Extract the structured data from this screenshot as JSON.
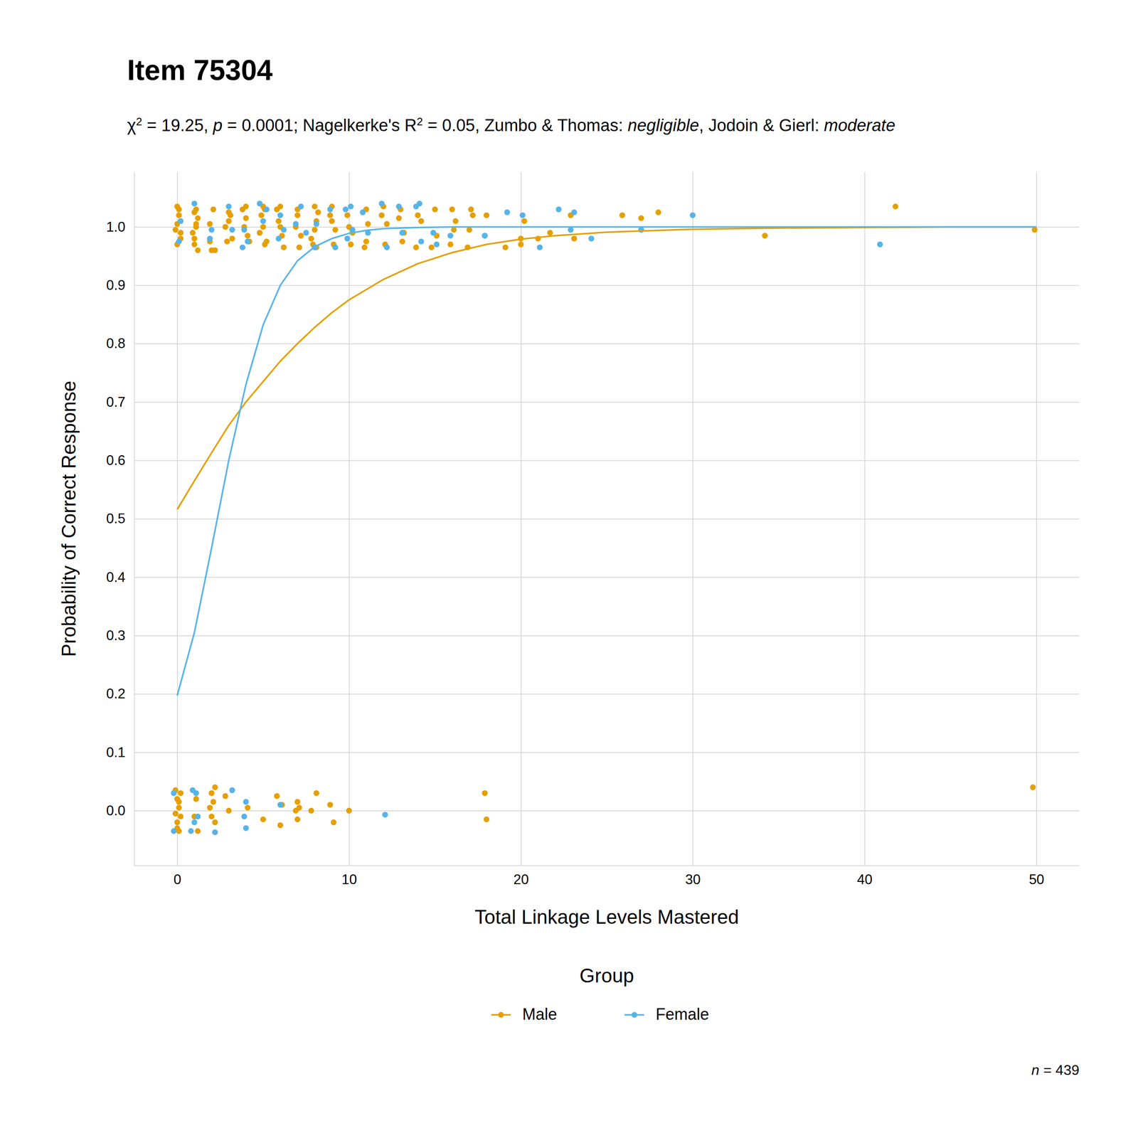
{
  "chart_data": {
    "type": "scatter",
    "title": "Item 75304",
    "subtitle": [
      {
        "text": "χ"
      },
      {
        "text": "2",
        "style": "sup"
      },
      {
        "text": " = 19.25, "
      },
      {
        "text": "p",
        "style": "italic"
      },
      {
        "text": " = 0.0001; Nagelkerke's R"
      },
      {
        "text": "2",
        "style": "sup"
      },
      {
        "text": " = 0.05, Zumbo & Thomas: "
      },
      {
        "text": "negligible",
        "style": "italic"
      },
      {
        "text": ", Jodoin & Gierl: "
      },
      {
        "text": "moderate",
        "style": "italic"
      }
    ],
    "caption": [
      {
        "text": "n",
        "style": "italic"
      },
      {
        "text": " = 439"
      }
    ],
    "x_label": "Total Linkage Levels Mastered",
    "y_label": "Probability of Correct Response",
    "legend_title": "Group",
    "legend": "bottom",
    "grid": true,
    "xlim": [
      -2.5,
      52.5
    ],
    "xticks": [
      0,
      10,
      20,
      30,
      40,
      50
    ],
    "ylim": [
      -0.094,
      1.094
    ],
    "yticks": [
      {
        "value": 0,
        "label": "0.0"
      },
      {
        "value": 0.1,
        "label": "0.1"
      },
      {
        "value": 0.2,
        "label": "0.2"
      },
      {
        "value": 0.3,
        "label": "0.3"
      },
      {
        "value": 0.4,
        "label": "0.4"
      },
      {
        "value": 0.5,
        "label": "0.5"
      },
      {
        "value": 0.6,
        "label": "0.6"
      },
      {
        "value": 0.7,
        "label": "0.7"
      },
      {
        "value": 0.8,
        "label": "0.8"
      },
      {
        "value": 0.9,
        "label": "0.9"
      },
      {
        "value": 1,
        "label": "1.0"
      }
    ],
    "series": [
      {
        "name": "Male",
        "color": "#E69F00",
        "marker": "circle",
        "line_style": "solid",
        "x": [
          0,
          1,
          2,
          3,
          4,
          5,
          6,
          7,
          8,
          9,
          10,
          12,
          14,
          16,
          18,
          20,
          22,
          25,
          30,
          35,
          40,
          45,
          50
        ],
        "values": [
          0.516,
          0.565,
          0.613,
          0.66,
          0.7,
          0.735,
          0.77,
          0.8,
          0.828,
          0.853,
          0.875,
          0.91,
          0.937,
          0.956,
          0.97,
          0.979,
          0.985,
          0.991,
          0.996,
          0.998,
          0.999,
          1.0,
          1.0
        ],
        "points_x": [
          0,
          0,
          0.1,
          0.2,
          -0.1,
          0.1,
          0.2,
          0,
          1,
          1.1,
          1,
          1.2,
          1.1,
          0.9,
          1.2,
          1,
          1.1,
          2,
          2.1,
          1.9,
          2.2,
          1.9,
          3,
          2.9,
          3.1,
          2.8,
          3.2,
          3,
          4,
          3.9,
          4.1,
          4,
          3.8,
          4.2,
          5,
          5.1,
          4.9,
          5,
          5.2,
          4.8,
          5.1,
          6,
          5.9,
          6.1,
          6.2,
          5.8,
          6,
          7,
          7.1,
          6.9,
          7.2,
          7,
          8,
          7.9,
          8.1,
          8,
          8.2,
          7.8,
          8.1,
          9,
          9.1,
          8.9,
          9.2,
          9,
          10,
          10.1,
          9.9,
          10.2,
          11,
          10.9,
          11.1,
          11,
          12,
          12.1,
          11.9,
          12.2,
          13,
          13.1,
          12.9,
          13.2,
          14,
          13.9,
          14.2,
          15,
          15.1,
          14.8,
          16,
          16.1,
          15.9,
          16.2,
          17,
          17.1,
          16.9,
          17.2,
          18,
          17.9,
          19.1,
          20,
          20,
          20.2,
          21,
          21.7,
          22.9,
          23.1,
          25.9,
          27,
          27,
          28,
          34.2,
          41.8,
          49.9,
          -0.1,
          0,
          0.1,
          0.2,
          0,
          0.1,
          0.2,
          -0.1,
          0.1,
          0,
          1,
          1.1,
          1.2,
          2,
          2.1,
          2.2,
          1.9,
          2,
          2.2,
          2.8,
          3,
          4.1,
          5,
          5.8,
          6,
          6.1,
          7,
          6.9,
          7,
          7.1,
          7.8,
          8.1,
          8.9,
          9.1,
          10,
          17.9,
          18,
          49.8
        ],
        "points_y": [
          1.035,
          0.97,
          1.02,
          0.99,
          0.995,
          1.03,
          0.98,
          1.005,
          1.025,
          1.0,
          0.97,
          0.96,
          1.03,
          0.99,
          1.015,
          0.98,
          1.005,
          0.96,
          1.03,
          0.975,
          0.96,
          1.005,
          1.025,
          0.975,
          1.02,
          1.0,
          0.98,
          1.01,
          1.035,
          1.0,
          0.985,
          1.015,
          1.03,
          0.975,
          1.035,
          0.97,
          1.02,
          1.0,
          0.975,
          0.99,
          1.03,
          1.035,
          1.01,
          0.985,
          0.965,
          1.03,
          1.0,
          1.02,
          0.965,
          1.0,
          0.985,
          1.03,
          1.035,
          0.97,
          1.01,
          0.995,
          1.025,
          0.98,
          0.965,
          1.035,
          0.97,
          1.02,
          0.995,
          1.01,
          1.0,
          0.97,
          1.02,
          0.99,
          1.03,
          0.965,
          1.005,
          0.975,
          1.035,
          0.97,
          1.02,
          1.005,
          1.03,
          0.975,
          1.015,
          0.99,
          1.02,
          0.965,
          1.01,
          1.03,
          0.985,
          0.965,
          1.03,
          0.995,
          0.97,
          1.01,
          0.995,
          1.03,
          0.965,
          1.02,
          1.02,
          0.985,
          0.965,
          0.98,
          0.97,
          1.01,
          0.98,
          0.99,
          1.02,
          0.98,
          1.02,
          1.015,
          0.995,
          1.025,
          0.985,
          1.035,
          0.995,
          0.035,
          0.02,
          0.005,
          -0.01,
          -0.02,
          -0.035,
          0.03,
          -0.005,
          0.015,
          -0.03,
          -0.01,
          0.02,
          -0.035,
          0.03,
          0.015,
          -0.02,
          0.005,
          -0.01,
          0.04,
          0.025,
          0.0,
          0.005,
          -0.015,
          0.025,
          -0.025,
          0.01,
          0.015,
          0.0,
          -0.015,
          0.005,
          0.0,
          0.03,
          0.01,
          -0.02,
          0.0,
          0.03,
          -0.015,
          0.04
        ]
      },
      {
        "name": "Female",
        "color": "#56B4E9",
        "marker": "circle",
        "line_style": "solid",
        "x": [
          0,
          1,
          2,
          3,
          4,
          5,
          6,
          7,
          8,
          9,
          10,
          11,
          12,
          14,
          16,
          20,
          30,
          40,
          50
        ],
        "values": [
          0.197,
          0.305,
          0.45,
          0.6,
          0.73,
          0.832,
          0.9,
          0.942,
          0.966,
          0.98,
          0.989,
          0.994,
          0.997,
          0.999,
          1.0,
          1.0,
          1.0,
          1.0,
          1.0
        ],
        "points_x": [
          0.2,
          0.1,
          1,
          1.9,
          2,
          3,
          3.2,
          3.8,
          3.9,
          4.1,
          4.8,
          5,
          5.2,
          5.9,
          6,
          6.2,
          6.9,
          7.2,
          7.5,
          8,
          8.1,
          8.9,
          9.2,
          9.8,
          10.1,
          9.9,
          10.2,
          10.8,
          11.1,
          11.9,
          12.2,
          12.9,
          13.1,
          13.9,
          14.1,
          14.2,
          14.9,
          15.1,
          15.9,
          17.9,
          19.2,
          20.1,
          21.1,
          22.2,
          22.9,
          23.1,
          24.1,
          27,
          30,
          40.9,
          -0.2,
          -0.2,
          0.9,
          1.1,
          1,
          0.8,
          1.2,
          2.2,
          3.2,
          3.9,
          4,
          4,
          6,
          12.1
        ],
        "points_y": [
          1.01,
          0.975,
          1.04,
          0.98,
          0.995,
          1.035,
          0.995,
          0.965,
          0.995,
          0.975,
          1.04,
          1.01,
          1.03,
          0.98,
          1.02,
          0.995,
          1.005,
          1.035,
          0.99,
          0.965,
          1.005,
          1.03,
          0.965,
          1.03,
          1.035,
          0.98,
          0.995,
          1.025,
          0.99,
          1.04,
          0.965,
          1.035,
          0.99,
          1.035,
          1.04,
          0.975,
          0.99,
          0.97,
          0.985,
          0.985,
          1.025,
          1.02,
          0.965,
          1.03,
          0.995,
          1.025,
          0.98,
          0.995,
          1.02,
          0.97,
          0.03,
          -0.035,
          0.035,
          0.03,
          -0.02,
          -0.035,
          -0.01,
          -0.037,
          0.035,
          -0.01,
          0.015,
          -0.03,
          0.01,
          -0.007
        ]
      }
    ]
  }
}
